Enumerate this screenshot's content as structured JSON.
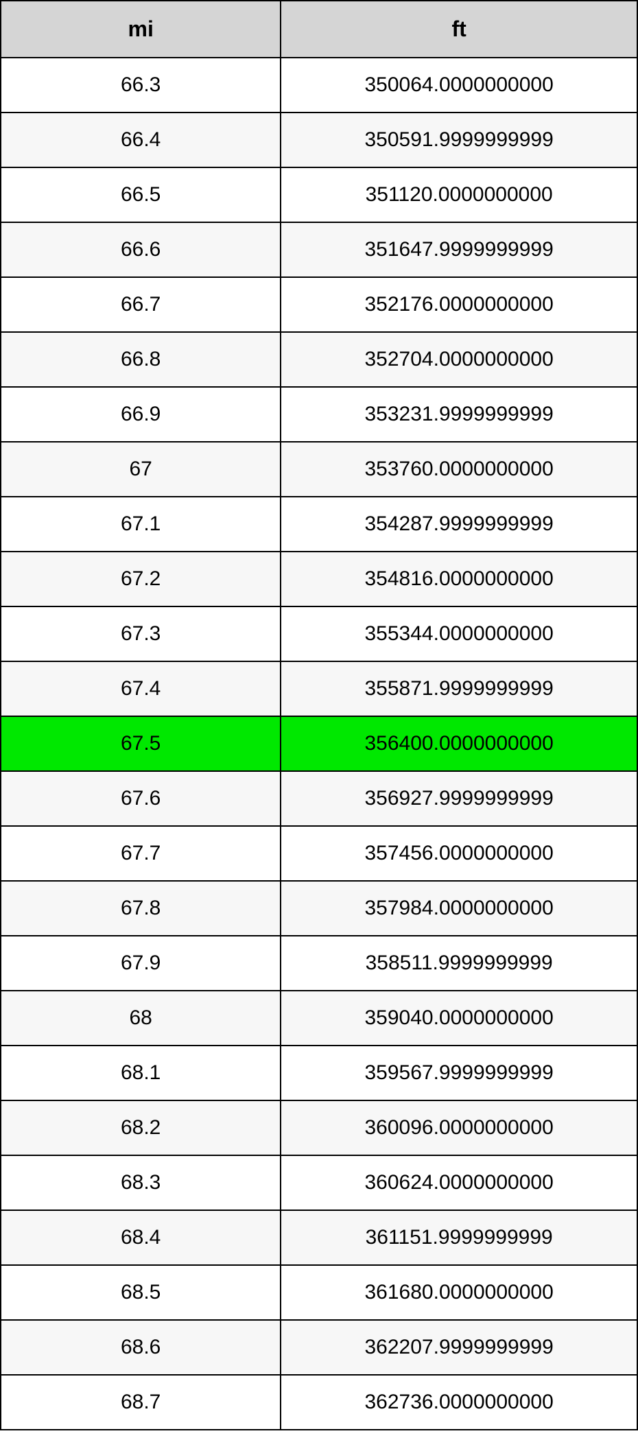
{
  "table": {
    "type": "table",
    "columns": [
      {
        "key": "mi",
        "label": "mi",
        "width_pct": 44
      },
      {
        "key": "ft",
        "label": "ft",
        "width_pct": 56
      }
    ],
    "header_bg": "#d5d5d5",
    "header_font_size": 32,
    "cell_font_size": 30,
    "border_color": "#000000",
    "row_alt_bg": "#f7f7f7",
    "row_bg": "#ffffff",
    "highlight_bg": "#00e800",
    "highlighted_row_index": 12,
    "rows": [
      {
        "mi": "66.3",
        "ft": "350064.0000000000"
      },
      {
        "mi": "66.4",
        "ft": "350591.9999999999"
      },
      {
        "mi": "66.5",
        "ft": "351120.0000000000"
      },
      {
        "mi": "66.6",
        "ft": "351647.9999999999"
      },
      {
        "mi": "66.7",
        "ft": "352176.0000000000"
      },
      {
        "mi": "66.8",
        "ft": "352704.0000000000"
      },
      {
        "mi": "66.9",
        "ft": "353231.9999999999"
      },
      {
        "mi": "67",
        "ft": "353760.0000000000"
      },
      {
        "mi": "67.1",
        "ft": "354287.9999999999"
      },
      {
        "mi": "67.2",
        "ft": "354816.0000000000"
      },
      {
        "mi": "67.3",
        "ft": "355344.0000000000"
      },
      {
        "mi": "67.4",
        "ft": "355871.9999999999"
      },
      {
        "mi": "67.5",
        "ft": "356400.0000000000"
      },
      {
        "mi": "67.6",
        "ft": "356927.9999999999"
      },
      {
        "mi": "67.7",
        "ft": "357456.0000000000"
      },
      {
        "mi": "67.8",
        "ft": "357984.0000000000"
      },
      {
        "mi": "67.9",
        "ft": "358511.9999999999"
      },
      {
        "mi": "68",
        "ft": "359040.0000000000"
      },
      {
        "mi": "68.1",
        "ft": "359567.9999999999"
      },
      {
        "mi": "68.2",
        "ft": "360096.0000000000"
      },
      {
        "mi": "68.3",
        "ft": "360624.0000000000"
      },
      {
        "mi": "68.4",
        "ft": "361151.9999999999"
      },
      {
        "mi": "68.5",
        "ft": "361680.0000000000"
      },
      {
        "mi": "68.6",
        "ft": "362207.9999999999"
      },
      {
        "mi": "68.7",
        "ft": "362736.0000000000"
      }
    ]
  }
}
